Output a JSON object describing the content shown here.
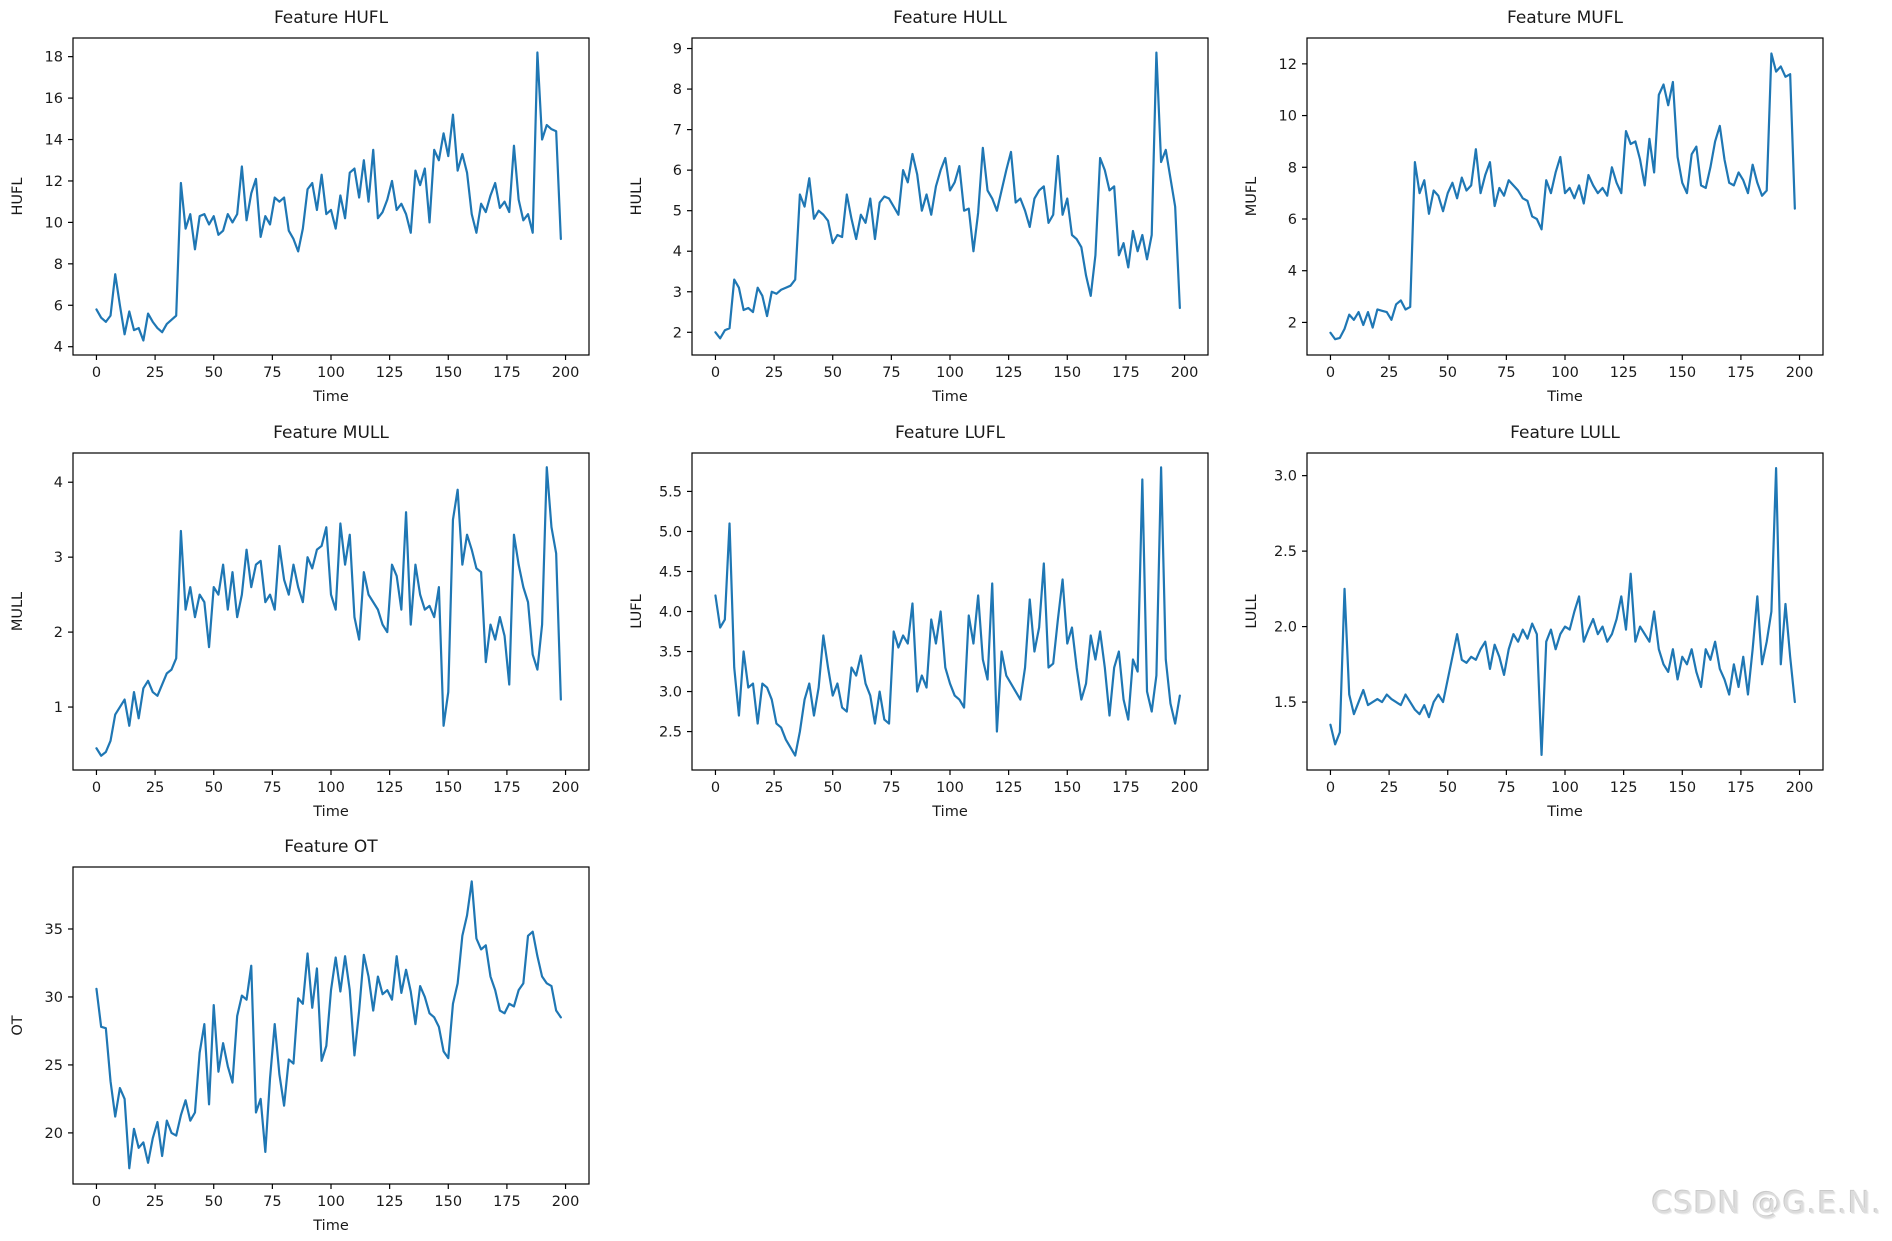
{
  "page": {
    "background": "#ffffff",
    "watermark": "CSDN @G.E.N."
  },
  "chart_data": [
    {
      "type": "line",
      "title": "Feature HUFL",
      "xlabel": "Time",
      "ylabel": "HUFL",
      "line_color": "#1f77b4",
      "grid": false,
      "legend": "none",
      "x_start": 0,
      "x_step": 2,
      "xlim": [
        -10,
        210
      ],
      "ylim": [
        3.6,
        18.9
      ],
      "x_ticks": [
        0,
        25,
        50,
        75,
        100,
        125,
        150,
        175,
        200
      ],
      "x_tick_labels": [
        "0",
        "25",
        "50",
        "75",
        "100",
        "125",
        "150",
        "175",
        "200"
      ],
      "y_ticks": [
        4,
        6,
        8,
        10,
        12,
        14,
        16,
        18
      ],
      "y_tick_labels": [
        "4",
        "6",
        "8",
        "10",
        "12",
        "14",
        "16",
        "18"
      ],
      "values": [
        5.8,
        5.4,
        5.2,
        5.5,
        7.5,
        6.0,
        4.6,
        5.7,
        4.8,
        4.9,
        4.3,
        5.6,
        5.2,
        4.9,
        4.7,
        5.1,
        5.3,
        5.5,
        11.9,
        9.7,
        10.4,
        8.7,
        10.3,
        10.4,
        9.9,
        10.3,
        9.4,
        9.6,
        10.4,
        10.0,
        10.4,
        12.7,
        10.1,
        11.4,
        12.1,
        9.3,
        10.3,
        9.9,
        11.2,
        11.0,
        11.2,
        9.6,
        9.2,
        8.6,
        9.7,
        11.6,
        11.9,
        10.6,
        12.3,
        10.4,
        10.6,
        9.7,
        11.3,
        10.2,
        12.4,
        12.6,
        11.2,
        13.0,
        11.0,
        13.5,
        10.2,
        10.5,
        11.1,
        12.0,
        10.6,
        10.9,
        10.4,
        9.5,
        12.5,
        11.8,
        12.6,
        10.0,
        13.5,
        13.0,
        14.3,
        13.2,
        15.2,
        12.5,
        13.3,
        12.4,
        10.4,
        9.5,
        10.9,
        10.5,
        11.3,
        11.9,
        10.7,
        11.0,
        10.5,
        13.7,
        11.1,
        10.1,
        10.4,
        9.5,
        18.2,
        14.0,
        14.7,
        14.5,
        14.4,
        9.2
      ]
    },
    {
      "type": "line",
      "title": "Feature HULL",
      "xlabel": "Time",
      "ylabel": "HULL",
      "line_color": "#1f77b4",
      "grid": false,
      "legend": "none",
      "x_start": 0,
      "x_step": 2,
      "xlim": [
        -10,
        210
      ],
      "ylim": [
        1.44,
        9.26
      ],
      "x_ticks": [
        0,
        25,
        50,
        75,
        100,
        125,
        150,
        175,
        200
      ],
      "x_tick_labels": [
        "0",
        "25",
        "50",
        "75",
        "100",
        "125",
        "150",
        "175",
        "200"
      ],
      "y_ticks": [
        2,
        3,
        4,
        5,
        6,
        7,
        8,
        9
      ],
      "y_tick_labels": [
        "2",
        "3",
        "4",
        "5",
        "6",
        "7",
        "8",
        "9"
      ],
      "values": [
        2.0,
        1.85,
        2.05,
        2.1,
        3.3,
        3.1,
        2.55,
        2.6,
        2.5,
        3.1,
        2.9,
        2.4,
        3.0,
        2.95,
        3.05,
        3.1,
        3.15,
        3.3,
        5.4,
        5.1,
        5.8,
        4.8,
        5.0,
        4.9,
        4.75,
        4.2,
        4.4,
        4.35,
        5.4,
        4.8,
        4.3,
        4.9,
        4.7,
        5.3,
        4.3,
        5.2,
        5.35,
        5.3,
        5.1,
        4.9,
        6.0,
        5.7,
        6.4,
        5.9,
        5.0,
        5.4,
        4.9,
        5.6,
        6.0,
        6.3,
        5.5,
        5.7,
        6.1,
        5.0,
        5.05,
        4.0,
        4.95,
        6.55,
        5.5,
        5.3,
        5.0,
        5.5,
        6.0,
        6.45,
        5.2,
        5.3,
        5.0,
        4.6,
        5.3,
        5.5,
        5.6,
        4.7,
        4.9,
        6.35,
        4.9,
        5.3,
        4.4,
        4.3,
        4.1,
        3.4,
        2.9,
        3.9,
        6.3,
        6.0,
        5.5,
        5.6,
        3.9,
        4.2,
        3.6,
        4.5,
        4.0,
        4.4,
        3.8,
        4.4,
        8.9,
        6.2,
        6.5,
        5.8,
        5.1,
        2.6
      ]
    },
    {
      "type": "line",
      "title": "Feature MUFL",
      "xlabel": "Time",
      "ylabel": "MUFL",
      "line_color": "#1f77b4",
      "grid": false,
      "legend": "none",
      "x_start": 0,
      "x_step": 2,
      "xlim": [
        -10,
        210
      ],
      "ylim": [
        0.74,
        13.0
      ],
      "x_ticks": [
        0,
        25,
        50,
        75,
        100,
        125,
        150,
        175,
        200
      ],
      "x_tick_labels": [
        "0",
        "25",
        "50",
        "75",
        "100",
        "125",
        "150",
        "175",
        "200"
      ],
      "y_ticks": [
        2,
        4,
        6,
        8,
        10,
        12
      ],
      "y_tick_labels": [
        "2",
        "4",
        "6",
        "8",
        "10",
        "12"
      ],
      "values": [
        1.6,
        1.35,
        1.4,
        1.75,
        2.3,
        2.1,
        2.4,
        1.9,
        2.4,
        1.8,
        2.5,
        2.45,
        2.4,
        2.1,
        2.7,
        2.85,
        2.5,
        2.6,
        8.2,
        7.0,
        7.5,
        6.2,
        7.1,
        6.9,
        6.3,
        7.0,
        7.4,
        6.8,
        7.6,
        7.1,
        7.3,
        8.7,
        7.0,
        7.7,
        8.2,
        6.5,
        7.2,
        6.9,
        7.5,
        7.3,
        7.1,
        6.8,
        6.7,
        6.1,
        6.0,
        5.6,
        7.5,
        7.0,
        7.8,
        8.4,
        7.0,
        7.2,
        6.8,
        7.3,
        6.6,
        7.7,
        7.3,
        7.0,
        7.2,
        6.9,
        8.0,
        7.4,
        7.0,
        9.4,
        8.9,
        9.0,
        8.3,
        7.3,
        9.1,
        7.8,
        10.8,
        11.2,
        10.4,
        11.3,
        8.4,
        7.4,
        7.0,
        8.5,
        8.8,
        7.3,
        7.2,
        8.0,
        9.0,
        9.6,
        8.3,
        7.4,
        7.3,
        7.8,
        7.5,
        7.0,
        8.1,
        7.4,
        6.9,
        7.1,
        12.4,
        11.7,
        11.9,
        11.5,
        11.6,
        6.4
      ]
    },
    {
      "type": "line",
      "title": "Feature MULL",
      "xlabel": "Time",
      "ylabel": "MULL",
      "line_color": "#1f77b4",
      "grid": false,
      "legend": "none",
      "x_start": 0,
      "x_step": 2,
      "xlim": [
        -10,
        210
      ],
      "ylim": [
        0.16,
        4.39
      ],
      "x_ticks": [
        0,
        25,
        50,
        75,
        100,
        125,
        150,
        175,
        200
      ],
      "x_tick_labels": [
        "0",
        "25",
        "50",
        "75",
        "100",
        "125",
        "150",
        "175",
        "200"
      ],
      "y_ticks": [
        1,
        2,
        3,
        4
      ],
      "y_tick_labels": [
        "1",
        "2",
        "3",
        "4"
      ],
      "values": [
        0.45,
        0.35,
        0.4,
        0.55,
        0.9,
        1.0,
        1.1,
        0.75,
        1.2,
        0.85,
        1.25,
        1.35,
        1.2,
        1.15,
        1.3,
        1.45,
        1.5,
        1.65,
        3.35,
        2.3,
        2.6,
        2.2,
        2.5,
        2.4,
        1.8,
        2.6,
        2.5,
        2.9,
        2.3,
        2.8,
        2.2,
        2.5,
        3.1,
        2.6,
        2.9,
        2.95,
        2.4,
        2.5,
        2.3,
        3.15,
        2.7,
        2.5,
        2.9,
        2.6,
        2.4,
        3.0,
        2.85,
        3.1,
        3.15,
        3.4,
        2.5,
        2.3,
        3.45,
        2.9,
        3.3,
        2.2,
        1.9,
        2.8,
        2.5,
        2.4,
        2.3,
        2.1,
        2.0,
        2.9,
        2.75,
        2.3,
        3.6,
        2.1,
        2.9,
        2.5,
        2.3,
        2.35,
        2.2,
        2.6,
        0.75,
        1.2,
        3.5,
        3.9,
        2.9,
        3.3,
        3.1,
        2.85,
        2.8,
        1.6,
        2.1,
        1.9,
        2.2,
        1.95,
        1.3,
        3.3,
        2.9,
        2.6,
        2.4,
        1.7,
        1.5,
        2.1,
        4.2,
        3.4,
        3.05,
        1.1
      ]
    },
    {
      "type": "line",
      "title": "Feature LUFL",
      "xlabel": "Time",
      "ylabel": "LUFL",
      "line_color": "#1f77b4",
      "grid": false,
      "legend": "none",
      "x_start": 0,
      "x_step": 2,
      "xlim": [
        -10,
        210
      ],
      "ylim": [
        2.02,
        5.98
      ],
      "x_ticks": [
        0,
        25,
        50,
        75,
        100,
        125,
        150,
        175,
        200
      ],
      "x_tick_labels": [
        "0",
        "25",
        "50",
        "75",
        "100",
        "125",
        "150",
        "175",
        "200"
      ],
      "y_ticks": [
        2.5,
        3.0,
        3.5,
        4.0,
        4.5,
        5.0,
        5.5
      ],
      "y_tick_labels": [
        "2.5",
        "3.0",
        "3.5",
        "4.0",
        "4.5",
        "5.0",
        "5.5"
      ],
      "values": [
        4.2,
        3.8,
        3.9,
        5.1,
        3.3,
        2.7,
        3.5,
        3.05,
        3.1,
        2.6,
        3.1,
        3.05,
        2.9,
        2.6,
        2.55,
        2.4,
        2.3,
        2.2,
        2.5,
        2.9,
        3.1,
        2.7,
        3.05,
        3.7,
        3.3,
        2.95,
        3.1,
        2.8,
        2.75,
        3.3,
        3.2,
        3.45,
        3.1,
        2.95,
        2.6,
        3.0,
        2.65,
        2.6,
        3.75,
        3.55,
        3.7,
        3.6,
        4.1,
        3.0,
        3.2,
        3.05,
        3.9,
        3.6,
        4.0,
        3.3,
        3.1,
        2.95,
        2.9,
        2.8,
        3.95,
        3.6,
        4.2,
        3.4,
        3.15,
        4.35,
        2.5,
        3.5,
        3.2,
        3.1,
        3.0,
        2.9,
        3.3,
        4.15,
        3.5,
        3.8,
        4.6,
        3.3,
        3.35,
        3.9,
        4.4,
        3.6,
        3.8,
        3.3,
        2.9,
        3.1,
        3.7,
        3.4,
        3.75,
        3.3,
        2.7,
        3.3,
        3.5,
        2.9,
        2.65,
        3.4,
        3.25,
        5.65,
        3.0,
        2.75,
        3.2,
        5.8,
        3.4,
        2.85,
        2.6,
        2.95
      ]
    },
    {
      "type": "line",
      "title": "Feature LULL",
      "xlabel": "Time",
      "ylabel": "LULL",
      "line_color": "#1f77b4",
      "grid": false,
      "legend": "none",
      "x_start": 0,
      "x_step": 2,
      "xlim": [
        -10,
        210
      ],
      "ylim": [
        1.05,
        3.15
      ],
      "x_ticks": [
        0,
        25,
        50,
        75,
        100,
        125,
        150,
        175,
        200
      ],
      "x_tick_labels": [
        "0",
        "25",
        "50",
        "75",
        "100",
        "125",
        "150",
        "175",
        "200"
      ],
      "y_ticks": [
        1.5,
        2.0,
        2.5,
        3.0
      ],
      "y_tick_labels": [
        "1.5",
        "2.0",
        "2.5",
        "3.0"
      ],
      "values": [
        1.35,
        1.22,
        1.3,
        2.25,
        1.55,
        1.42,
        1.5,
        1.58,
        1.48,
        1.5,
        1.52,
        1.5,
        1.55,
        1.52,
        1.5,
        1.48,
        1.55,
        1.5,
        1.45,
        1.42,
        1.48,
        1.4,
        1.5,
        1.55,
        1.5,
        1.65,
        1.8,
        1.95,
        1.78,
        1.76,
        1.8,
        1.78,
        1.85,
        1.9,
        1.72,
        1.88,
        1.8,
        1.68,
        1.85,
        1.95,
        1.9,
        1.98,
        1.92,
        2.02,
        1.95,
        1.15,
        1.9,
        1.98,
        1.85,
        1.95,
        2.0,
        1.98,
        2.1,
        2.2,
        1.9,
        1.98,
        2.05,
        1.95,
        2.0,
        1.9,
        1.95,
        2.05,
        2.2,
        1.98,
        2.35,
        1.9,
        2.0,
        1.95,
        1.9,
        2.1,
        1.85,
        1.75,
        1.7,
        1.85,
        1.65,
        1.8,
        1.75,
        1.85,
        1.7,
        1.6,
        1.85,
        1.78,
        1.9,
        1.72,
        1.65,
        1.55,
        1.75,
        1.6,
        1.8,
        1.55,
        1.85,
        2.2,
        1.75,
        1.9,
        2.1,
        3.05,
        1.75,
        2.15,
        1.8,
        1.5
      ]
    },
    {
      "type": "line",
      "title": "Feature OT",
      "xlabel": "Time",
      "ylabel": "OT",
      "line_color": "#1f77b4",
      "grid": false,
      "legend": "none",
      "x_start": 0,
      "x_step": 2,
      "xlim": [
        -10,
        210
      ],
      "ylim": [
        16.24,
        39.56
      ],
      "x_ticks": [
        0,
        25,
        50,
        75,
        100,
        125,
        150,
        175,
        200
      ],
      "x_tick_labels": [
        "0",
        "25",
        "50",
        "75",
        "100",
        "125",
        "150",
        "175",
        "200"
      ],
      "y_ticks": [
        20,
        25,
        30,
        35
      ],
      "y_tick_labels": [
        "20",
        "25",
        "30",
        "35"
      ],
      "values": [
        30.6,
        27.8,
        27.7,
        23.8,
        21.2,
        23.3,
        22.5,
        17.4,
        20.3,
        18.9,
        19.3,
        17.8,
        19.6,
        20.8,
        18.3,
        20.9,
        20.0,
        19.8,
        21.3,
        22.4,
        20.9,
        21.5,
        25.9,
        28.0,
        22.1,
        29.4,
        24.5,
        26.6,
        24.9,
        23.7,
        28.6,
        30.1,
        29.8,
        32.3,
        21.5,
        22.5,
        18.6,
        24.0,
        28.0,
        24.3,
        22.0,
        25.4,
        25.1,
        29.9,
        29.5,
        33.2,
        29.2,
        32.1,
        25.3,
        26.4,
        30.5,
        32.9,
        30.4,
        33.0,
        30.5,
        25.7,
        29.0,
        33.1,
        31.5,
        29.0,
        31.5,
        30.2,
        30.5,
        29.8,
        33.0,
        30.3,
        32.0,
        30.4,
        28.0,
        30.8,
        30.0,
        28.8,
        28.5,
        27.8,
        26.0,
        25.5,
        29.5,
        31.0,
        34.5,
        36.0,
        38.5,
        34.3,
        33.5,
        33.8,
        31.5,
        30.5,
        29.0,
        28.8,
        29.5,
        29.3,
        30.5,
        31.0,
        34.5,
        34.8,
        33.0,
        31.5,
        31.0,
        30.8,
        29.0,
        28.5
      ]
    }
  ]
}
